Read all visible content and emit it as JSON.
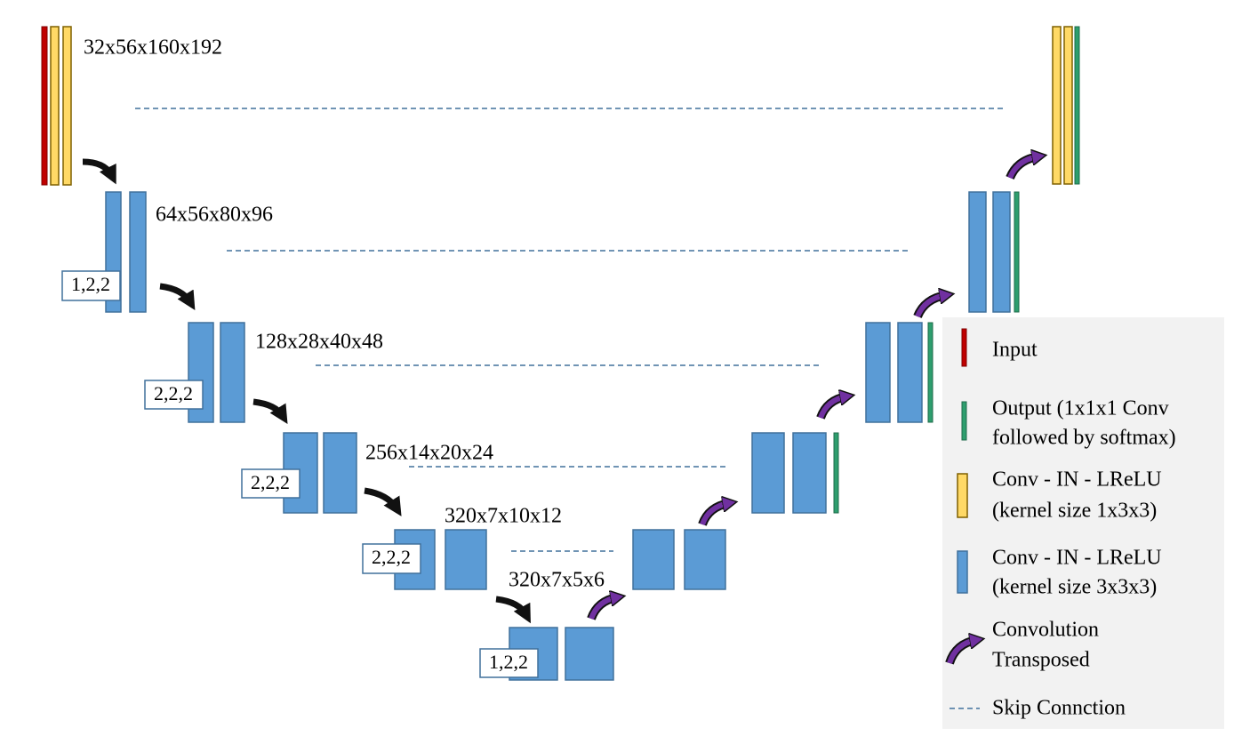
{
  "levels": [
    {
      "label": "32x56x160x192"
    },
    {
      "label": "64x56x80x96",
      "stride": "1,2,2"
    },
    {
      "label": "128x28x40x48",
      "stride": "2,2,2"
    },
    {
      "label": "256x14x20x24",
      "stride": "2,2,2"
    },
    {
      "label": "320x7x10x12",
      "stride": "2,2,2"
    },
    {
      "label": "320x7x5x6",
      "stride": "1,2,2"
    }
  ],
  "legend": [
    {
      "lines": [
        "Input"
      ]
    },
    {
      "lines": [
        "Output (1x1x1 Conv",
        "followed by softmax)"
      ]
    },
    {
      "lines": [
        "Conv - IN - LReLU",
        "(kernel size 1x3x3)"
      ]
    },
    {
      "lines": [
        "Conv - IN - LReLU",
        "(kernel size 3x3x3)"
      ]
    },
    {
      "lines": [
        "Convolution",
        "Transposed"
      ]
    },
    {
      "lines": [
        "Skip Connction"
      ]
    }
  ]
}
